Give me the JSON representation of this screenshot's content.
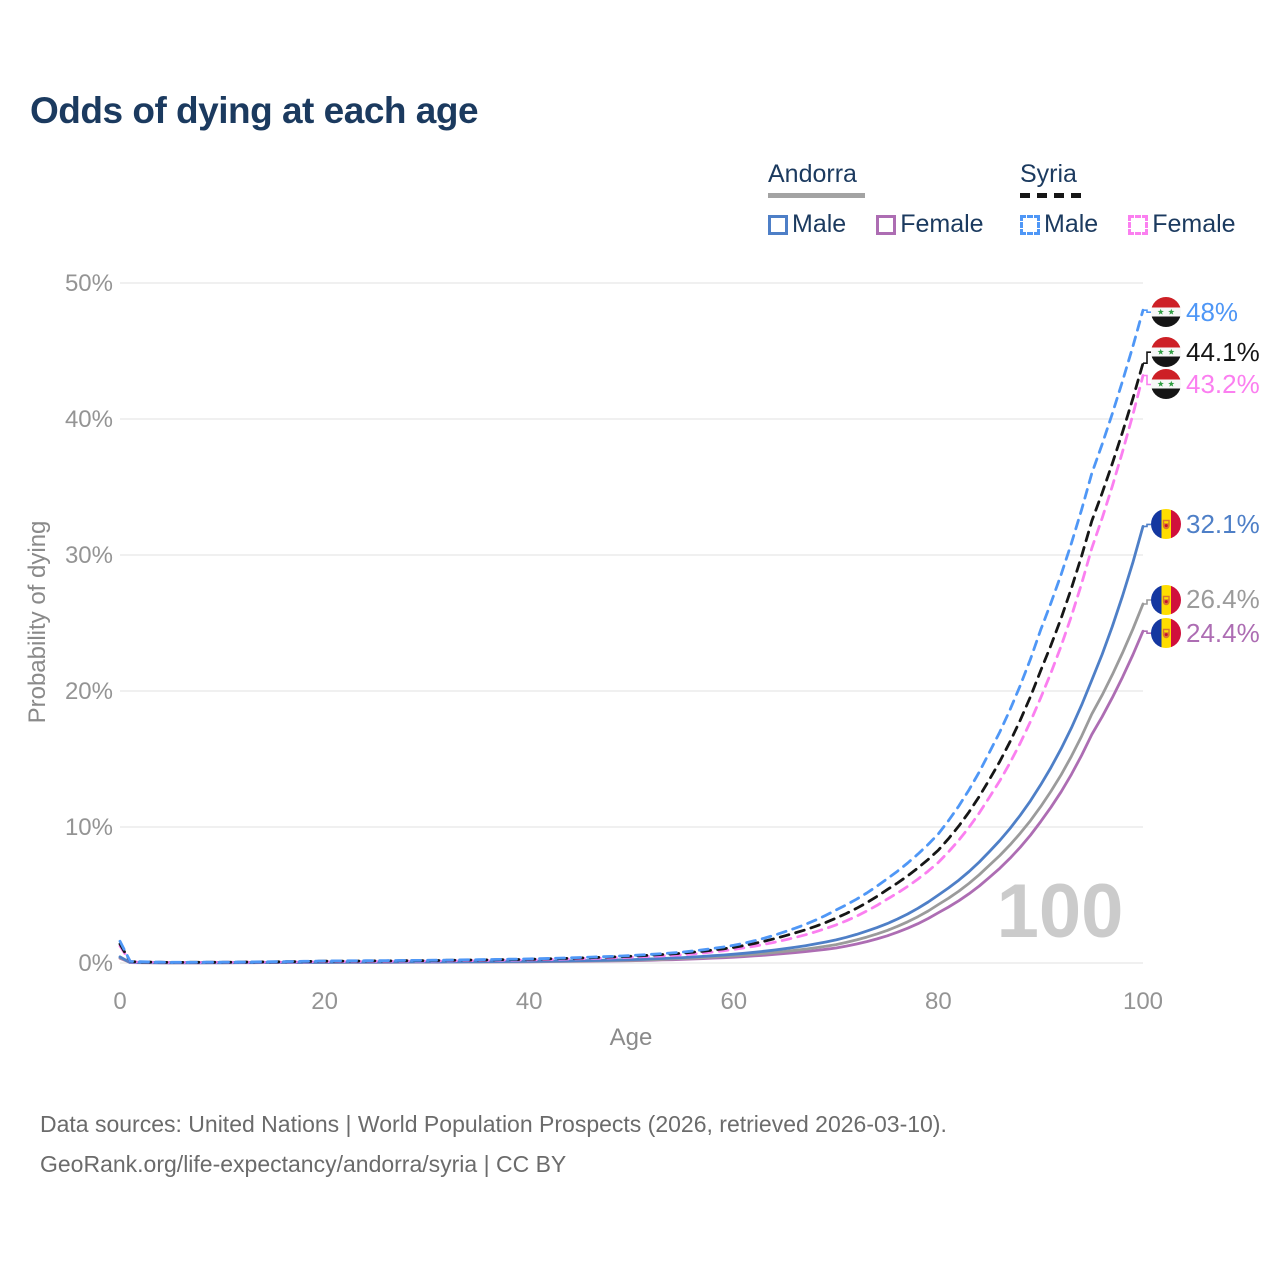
{
  "title": "Odds of dying at each age",
  "legend": {
    "groups": [
      {
        "country": "Andorra",
        "line_style": "solid",
        "line_color": "#a3a3a3",
        "items": [
          {
            "label": "Male",
            "color": "#4e7fc7",
            "style": "solid"
          },
          {
            "label": "Female",
            "color": "#ad6db3",
            "style": "solid"
          }
        ]
      },
      {
        "country": "Syria",
        "line_style": "dashed",
        "line_color": "#161616",
        "items": [
          {
            "label": "Male",
            "color": "#4f97f6",
            "style": "dashed"
          },
          {
            "label": "Female",
            "color": "#fb7ff0",
            "style": "dashed"
          }
        ]
      }
    ]
  },
  "chart_data": {
    "type": "line",
    "title": "Odds of dying at each age",
    "xlabel": "Age",
    "ylabel": "Probability of dying",
    "xlim": [
      0,
      100
    ],
    "ylim": [
      0,
      50
    ],
    "x_ticks": [
      {
        "v": 0,
        "label": "0"
      },
      {
        "v": 20,
        "label": "20"
      },
      {
        "v": 40,
        "label": "40"
      },
      {
        "v": 60,
        "label": "60"
      },
      {
        "v": 80,
        "label": "80"
      },
      {
        "v": 100,
        "label": "100"
      }
    ],
    "y_ticks": [
      {
        "v": 0,
        "label": "0%"
      },
      {
        "v": 10,
        "label": "10%"
      },
      {
        "v": 20,
        "label": "20%"
      },
      {
        "v": 30,
        "label": "30%"
      },
      {
        "v": 40,
        "label": "40%"
      },
      {
        "v": 50,
        "label": "50%"
      }
    ],
    "grid": "horizontal",
    "legend_position": "top-right",
    "x": [
      0,
      1,
      5,
      10,
      20,
      30,
      40,
      50,
      55,
      60,
      65,
      70,
      75,
      80,
      85,
      90,
      95,
      100
    ],
    "series": [
      {
        "name": "Syria Male",
        "country": "syria",
        "color": "#4f97f6",
        "dash": true,
        "end_label": "48%",
        "label_dy": 2,
        "values": [
          1.6,
          0.12,
          0.05,
          0.06,
          0.15,
          0.2,
          0.3,
          0.55,
          0.8,
          1.3,
          2.3,
          3.9,
          6.2,
          9.5,
          15.5,
          24.5,
          36,
          48
        ]
      },
      {
        "name": "Syria Total",
        "country": "syria",
        "color": "#161616",
        "dash": true,
        "end_label": "44.1%",
        "label_dy": -11,
        "values": [
          1.4,
          0.1,
          0.045,
          0.055,
          0.13,
          0.18,
          0.27,
          0.5,
          0.72,
          1.15,
          2,
          3.3,
          5.4,
          8.3,
          13.5,
          21.5,
          32.5,
          44.1
        ]
      },
      {
        "name": "Syria Female",
        "country": "syria",
        "color": "#fb7ff0",
        "dash": true,
        "end_label": "43.2%",
        "label_dy": 9,
        "values": [
          1.25,
          0.09,
          0.04,
          0.05,
          0.1,
          0.15,
          0.23,
          0.43,
          0.6,
          1,
          1.7,
          2.8,
          4.7,
          7.4,
          12.2,
          19.5,
          30.5,
          43.2
        ]
      },
      {
        "name": "Andorra Male",
        "country": "andorra",
        "color": "#4e7fc7",
        "dash": false,
        "end_label": "32.1%",
        "label_dy": -2,
        "values": [
          0.45,
          0.04,
          0.02,
          0.025,
          0.06,
          0.08,
          0.12,
          0.25,
          0.4,
          0.65,
          1.05,
          1.7,
          2.9,
          5,
          8.2,
          13.1,
          20.8,
          32.1
        ]
      },
      {
        "name": "Andorra Total",
        "country": "andorra",
        "color": "#9b9b9b",
        "dash": false,
        "end_label": "26.4%",
        "label_dy": -4,
        "values": [
          0.4,
          0.035,
          0.018,
          0.022,
          0.05,
          0.07,
          0.1,
          0.2,
          0.33,
          0.52,
          0.85,
          1.35,
          2.4,
          4.3,
          7.2,
          11.5,
          18.3,
          26.4
        ]
      },
      {
        "name": "Andorra Female",
        "country": "andorra",
        "color": "#ad6db3",
        "dash": false,
        "end_label": "24.4%",
        "label_dy": 2,
        "values": [
          0.35,
          0.03,
          0.015,
          0.02,
          0.04,
          0.06,
          0.09,
          0.17,
          0.27,
          0.43,
          0.7,
          1.1,
          2,
          3.7,
          6.3,
          10.4,
          16.8,
          24.4
        ]
      }
    ]
  },
  "watermark": "100",
  "footer": {
    "line1": "Data sources: United Nations | World Population Prospects (2026, retrieved 2026-03-10).",
    "line2": "GeoRank.org/life-expectancy/andorra/syria | CC BY"
  }
}
